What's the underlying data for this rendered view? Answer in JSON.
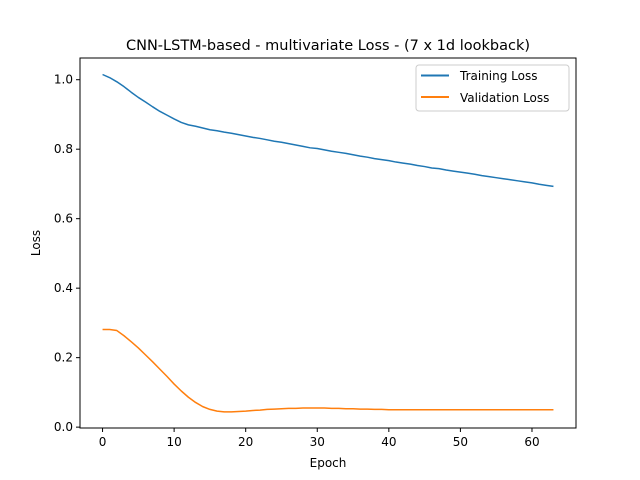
{
  "chart_data": {
    "type": "line",
    "title": "CNN-LSTM-based - multivariate Loss - (7 x 1d lookback)",
    "xlabel": "Epoch",
    "ylabel": "Loss",
    "xlim": [
      -3.15,
      66.15
    ],
    "ylim": [
      -0.0025,
      1.0625
    ],
    "xticks": [
      0,
      10,
      20,
      30,
      40,
      50,
      60
    ],
    "yticks": [
      0.0,
      0.2,
      0.4,
      0.6,
      0.8,
      1.0
    ],
    "ytick_labels": [
      "0.0",
      "0.2",
      "0.4",
      "0.6",
      "0.8",
      "1.0"
    ],
    "grid": false,
    "legend_position": "upper right",
    "series": [
      {
        "name": "Training Loss",
        "color": "#1f77b4",
        "x": [
          0,
          1,
          2,
          3,
          4,
          5,
          6,
          7,
          8,
          9,
          10,
          11,
          12,
          13,
          14,
          15,
          16,
          17,
          18,
          19,
          20,
          21,
          22,
          23,
          24,
          25,
          26,
          27,
          28,
          29,
          30,
          31,
          32,
          33,
          34,
          35,
          36,
          37,
          38,
          39,
          40,
          41,
          42,
          43,
          44,
          45,
          46,
          47,
          48,
          49,
          50,
          51,
          52,
          53,
          54,
          55,
          56,
          57,
          58,
          59,
          60,
          61,
          62,
          63
        ],
        "y": [
          1.015,
          1.006,
          0.994,
          0.98,
          0.964,
          0.949,
          0.936,
          0.922,
          0.909,
          0.898,
          0.887,
          0.877,
          0.87,
          0.866,
          0.861,
          0.856,
          0.853,
          0.849,
          0.846,
          0.842,
          0.838,
          0.834,
          0.831,
          0.827,
          0.823,
          0.82,
          0.816,
          0.812,
          0.808,
          0.804,
          0.802,
          0.798,
          0.794,
          0.791,
          0.788,
          0.784,
          0.78,
          0.777,
          0.773,
          0.77,
          0.767,
          0.763,
          0.76,
          0.757,
          0.753,
          0.75,
          0.746,
          0.744,
          0.74,
          0.737,
          0.734,
          0.731,
          0.728,
          0.724,
          0.721,
          0.718,
          0.715,
          0.712,
          0.709,
          0.706,
          0.703,
          0.699,
          0.696,
          0.693
        ]
      },
      {
        "name": "Validation Loss",
        "color": "#ff7f0e",
        "x": [
          0,
          1,
          2,
          3,
          4,
          5,
          6,
          7,
          8,
          9,
          10,
          11,
          12,
          13,
          14,
          15,
          16,
          17,
          18,
          19,
          20,
          21,
          22,
          23,
          24,
          25,
          26,
          27,
          28,
          29,
          30,
          31,
          32,
          33,
          34,
          35,
          36,
          37,
          38,
          39,
          40,
          41,
          42,
          43,
          44,
          45,
          46,
          47,
          48,
          49,
          50,
          51,
          52,
          53,
          54,
          55,
          56,
          57,
          58,
          59,
          60,
          61,
          62,
          63
        ],
        "y": [
          0.281,
          0.281,
          0.278,
          0.263,
          0.246,
          0.228,
          0.208,
          0.188,
          0.167,
          0.146,
          0.124,
          0.104,
          0.086,
          0.071,
          0.059,
          0.051,
          0.046,
          0.044,
          0.044,
          0.045,
          0.046,
          0.048,
          0.049,
          0.051,
          0.052,
          0.053,
          0.054,
          0.054,
          0.055,
          0.055,
          0.055,
          0.055,
          0.054,
          0.054,
          0.053,
          0.053,
          0.052,
          0.052,
          0.051,
          0.051,
          0.05,
          0.05,
          0.05,
          0.05,
          0.05,
          0.05,
          0.05,
          0.05,
          0.05,
          0.05,
          0.05,
          0.05,
          0.05,
          0.05,
          0.05,
          0.05,
          0.05,
          0.05,
          0.05,
          0.05,
          0.05,
          0.05,
          0.05,
          0.05
        ]
      }
    ]
  }
}
